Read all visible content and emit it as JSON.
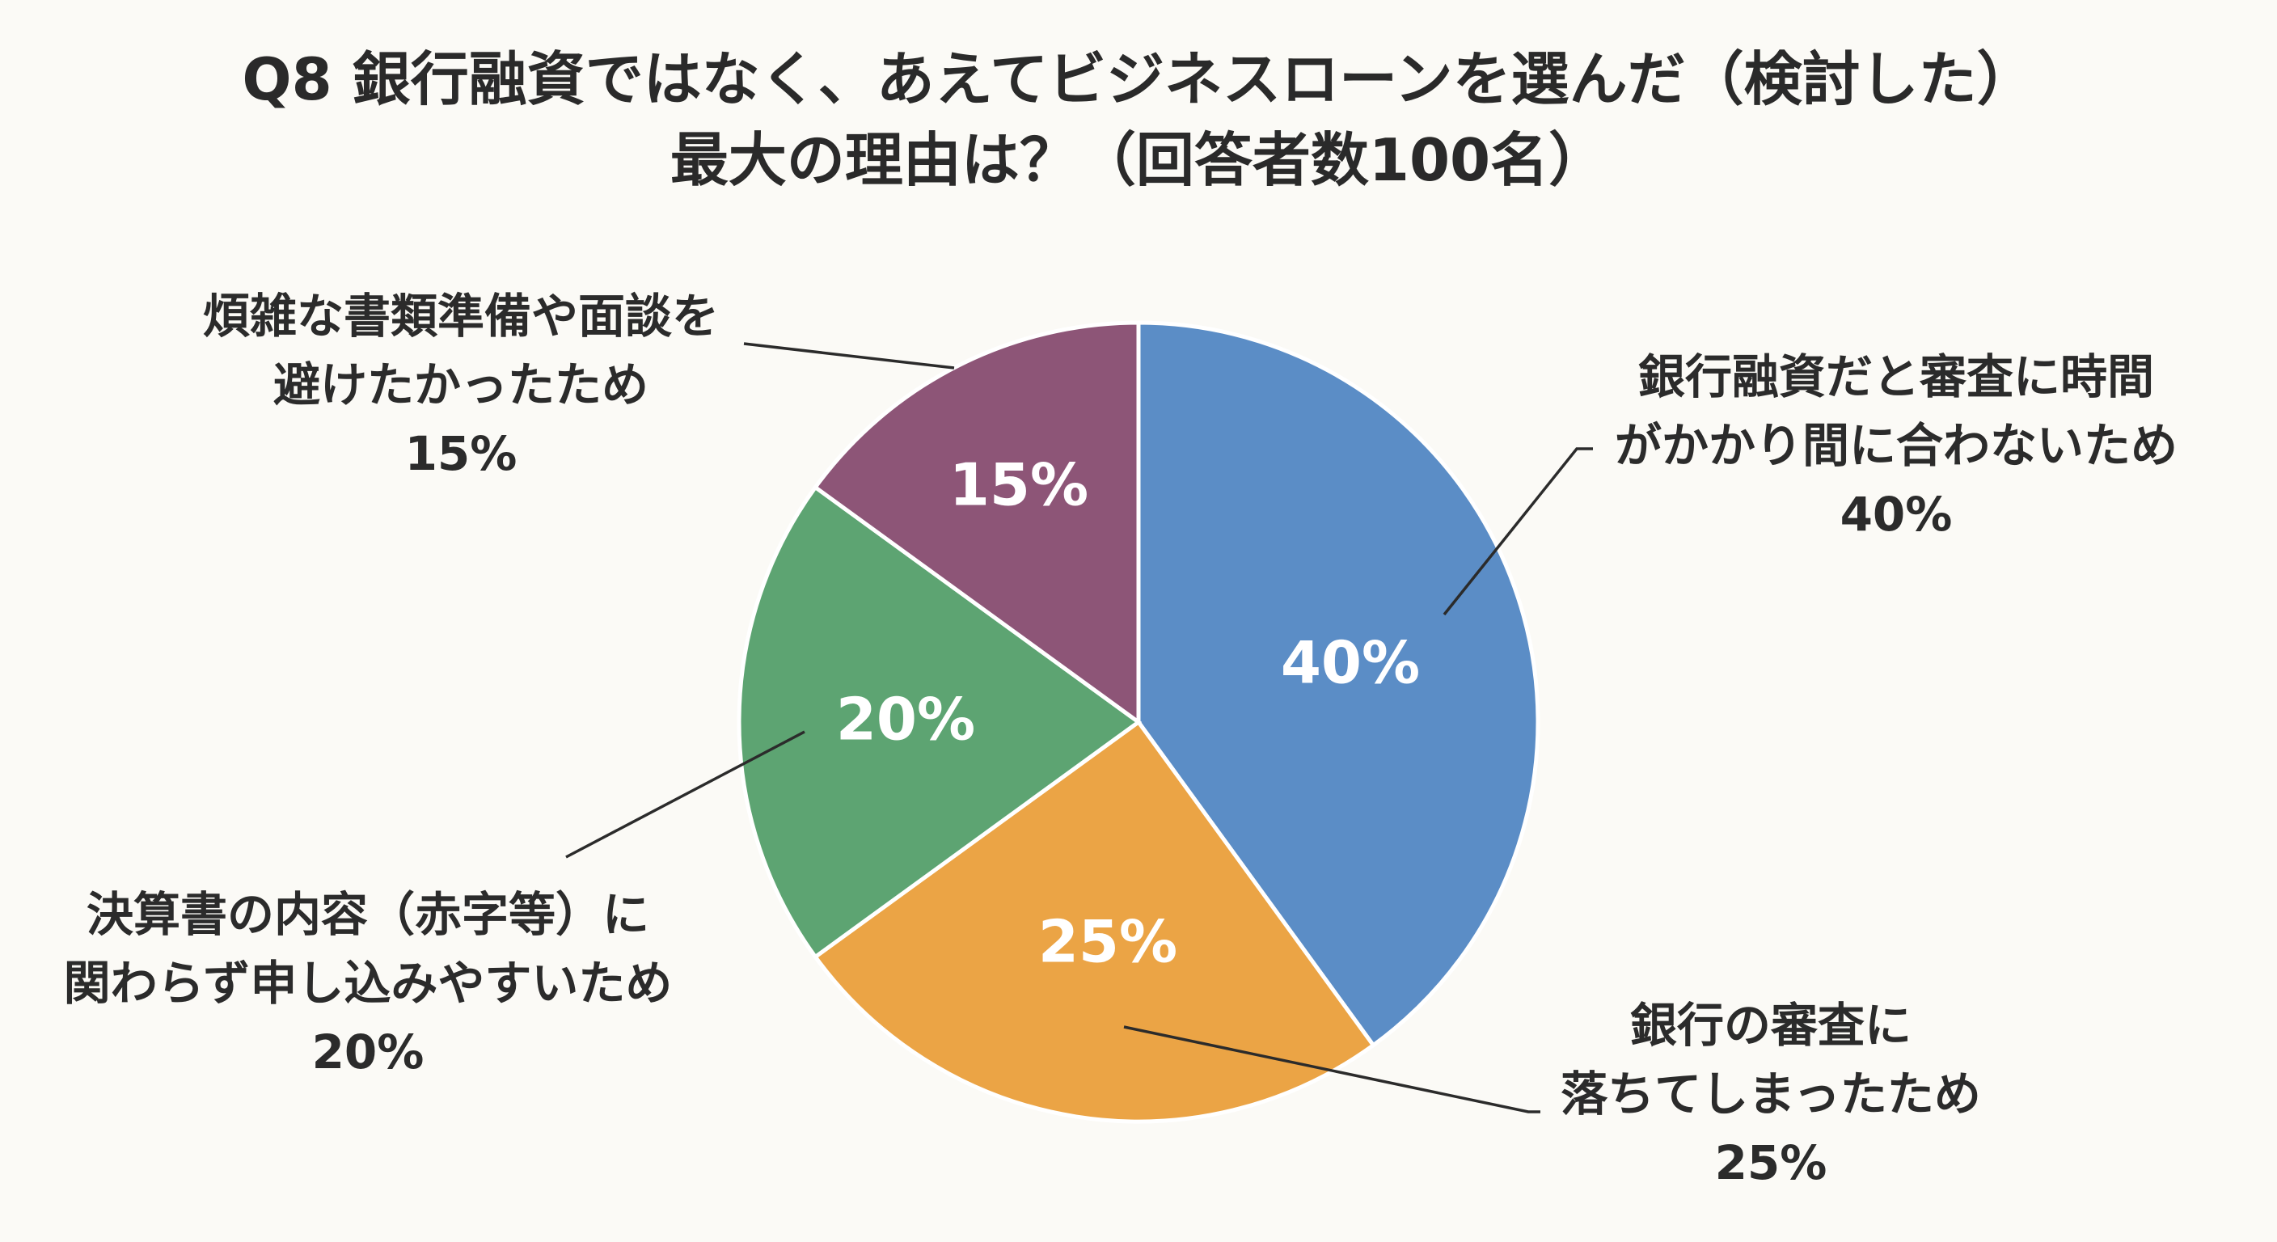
{
  "title": {
    "line1": "Q8 銀行融資ではなく、あえてビジネスローンを選んだ（検討した）",
    "line2": "最大の理由は？（回答者数100名）"
  },
  "chart_data": {
    "type": "pie",
    "title": "Q8 銀行融資ではなく、あえてビジネスローンを選んだ（検討した） 最大の理由は？（回答者数100名）",
    "start_angle_deg": 0,
    "direction": "clockwise",
    "slices": [
      {
        "key": "time",
        "label_lines": [
          "銀行融資だと審査に時間",
          "がかかり間に合わないため",
          "40%"
        ],
        "value": 40,
        "value_label": "40%",
        "color": "#5b8dc6"
      },
      {
        "key": "rejected",
        "label_lines": [
          "銀行の審査に",
          "落ちてしまったため",
          "25%"
        ],
        "value": 25,
        "value_label": "25%",
        "color": "#eba445"
      },
      {
        "key": "financials",
        "label_lines": [
          "決算書の内容（赤字等）に",
          "関わらず申し込みやすいため",
          "20%"
        ],
        "value": 20,
        "value_label": "20%",
        "color": "#5da472"
      },
      {
        "key": "paperwork",
        "label_lines": [
          "煩雑な書類準備や面談を",
          "避けたかったため",
          "15%"
        ],
        "value": 15,
        "value_label": "15%",
        "color": "#8d5577"
      }
    ]
  }
}
